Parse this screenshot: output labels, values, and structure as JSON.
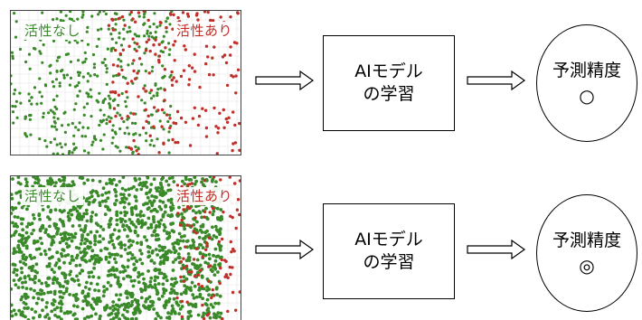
{
  "colors": {
    "inactive": "#3a8a2a",
    "active": "#c0302a",
    "grid": "#e4e4e4"
  },
  "rows": [
    {
      "plot": {
        "label_inactive": "活性なし",
        "label_active": "活性あり",
        "density": "sparse"
      },
      "model": {
        "line1": "AIモデル",
        "line2": "の学習"
      },
      "result": {
        "title": "予測精度",
        "mark": "○"
      }
    },
    {
      "plot": {
        "label_inactive": "活性なし",
        "label_active": "活性あり",
        "density": "dense"
      },
      "model": {
        "line1": "AIモデル",
        "line2": "の学習"
      },
      "result": {
        "title": "予測精度",
        "mark": "◎"
      }
    }
  ]
}
